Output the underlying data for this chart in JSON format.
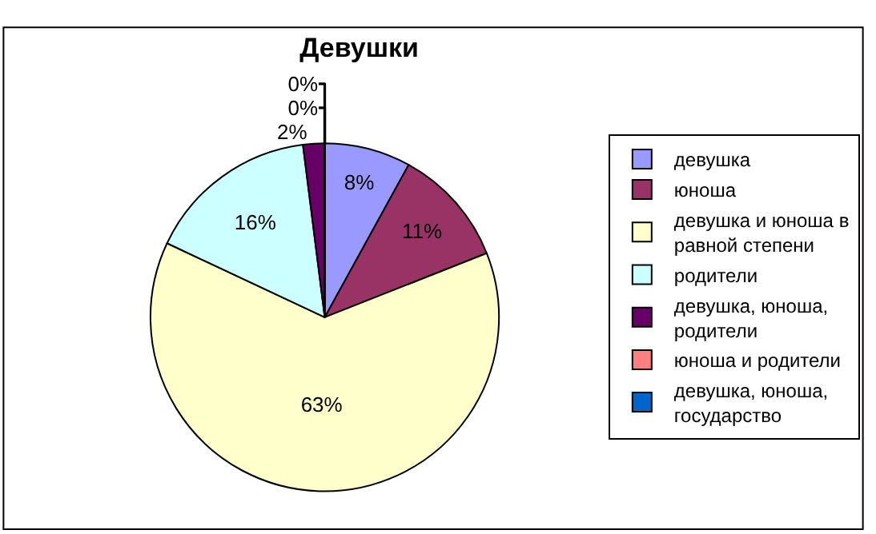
{
  "chart_data": {
    "type": "pie",
    "title": "Девушки",
    "categories": [
      "девушка",
      "юноша",
      "девушка и юноша в равной степени",
      "родители",
      "девушка, юноша, родители",
      "юноша и родители",
      "девушка, юноша, государство"
    ],
    "values": [
      8,
      11,
      63,
      16,
      2,
      0,
      0
    ],
    "colors": [
      "#9999ff",
      "#993366",
      "#ffffcc",
      "#ccffff",
      "#660066",
      "#ff8080",
      "#0066cc"
    ],
    "value_labels": [
      "8%",
      "11%",
      "63%",
      "16%",
      "2%",
      "0%",
      "0%"
    ],
    "legend": "right"
  }
}
